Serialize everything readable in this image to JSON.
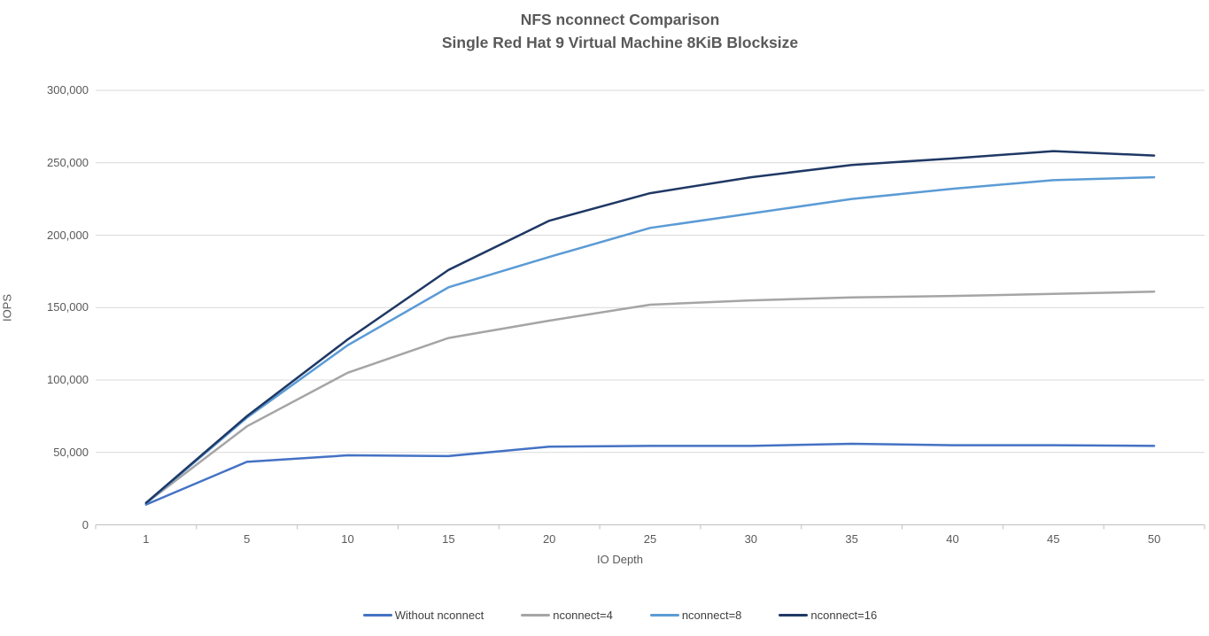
{
  "title": {
    "line1": "NFS nconnect Comparison",
    "line2": "Single Red Hat 9 Virtual Machine 8KiB Blocksize"
  },
  "colors": {
    "background": "#FFFFFF",
    "text": "#595959",
    "gridline": "#D9D9D9",
    "axis_line": "#BFBFBF",
    "series_blue": "#4472C4",
    "series_gray": "#A5A5A5",
    "series_light_blue": "#5B9BD5",
    "series_navy": "#1F3864"
  },
  "chart_data": {
    "type": "line",
    "title": "NFS nconnect Comparison",
    "subtitle": "Single Red Hat 9 Virtual Machine 8KiB Blocksize",
    "xlabel": "IO Depth",
    "ylabel": "IOPS",
    "x_categories": [
      1,
      5,
      10,
      15,
      20,
      25,
      30,
      35,
      40,
      45,
      50
    ],
    "x_tick_labels": [
      "1",
      "5",
      "10",
      "15",
      "20",
      "25",
      "30",
      "35",
      "40",
      "45",
      "50"
    ],
    "y_ticks": [
      0,
      50000,
      100000,
      150000,
      200000,
      250000,
      300000
    ],
    "y_tick_labels": [
      "0",
      "50,000",
      "100,000",
      "150,000",
      "200,000",
      "250,000",
      "300,000"
    ],
    "ylim": [
      0,
      300000
    ],
    "grid": true,
    "legend_position": "bottom",
    "series": [
      {
        "name": "Without nconnect",
        "color": "#4472C4",
        "values": [
          14000,
          43500,
          48000,
          47500,
          54000,
          54500,
          54500,
          56000,
          55000,
          55000,
          54500
        ]
      },
      {
        "name": "nconnect=4",
        "color": "#A5A5A5",
        "values": [
          15000,
          68000,
          105000,
          129000,
          141000,
          152000,
          155000,
          157000,
          158000,
          159500,
          161000
        ]
      },
      {
        "name": "nconnect=8",
        "color": "#5B9BD5",
        "values": [
          14800,
          74000,
          124000,
          164000,
          185000,
          205000,
          215000,
          225000,
          232000,
          238000,
          240000
        ]
      },
      {
        "name": "nconnect=16",
        "color": "#1F3864",
        "values": [
          15200,
          75000,
          128000,
          176000,
          210000,
          229000,
          240000,
          248500,
          253000,
          258000,
          255000
        ]
      }
    ]
  }
}
